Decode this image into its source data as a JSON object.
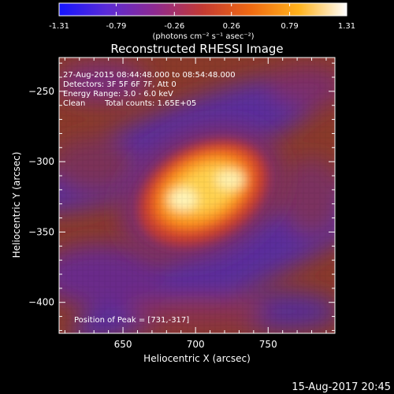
{
  "colorbar": {
    "ticks": [
      "-1.31",
      "-0.79",
      "-0.26",
      "0.26",
      "0.79",
      "1.31"
    ],
    "units": "(photons cm⁻² s⁻¹ asec⁻²)",
    "min": -1.31,
    "max": 1.31,
    "colors": [
      "#1515ff",
      "#5b2bd6",
      "#8e2a90",
      "#c43a32",
      "#f06a12",
      "#ffb21c",
      "#ffffff"
    ]
  },
  "image": {
    "title": "Reconstructed RHESSI Image",
    "time_range": "27-Aug-2015 08:44:48.000 to 08:54:48.000",
    "detectors": "Detectors: 3F 5F 6F 7F, Att 0",
    "energy_range": "Energy Range: 3.0 - 6.0 keV",
    "clean_label": "Clean",
    "total_counts": "Total counts: 1.65E+05",
    "peak_position": "Position of Peak = [731,-317]",
    "xlabel": "Heliocentric X (arcsec)",
    "ylabel": "Heliocentric Y (arcsec)",
    "xticks": [
      650,
      700,
      750
    ],
    "yticks": [
      -250,
      -300,
      -350,
      -400
    ],
    "xlim": [
      606,
      796
    ],
    "ylim": [
      -422,
      -226
    ]
  },
  "footer": {
    "timestamp": "15-Aug-2017 20:45"
  }
}
